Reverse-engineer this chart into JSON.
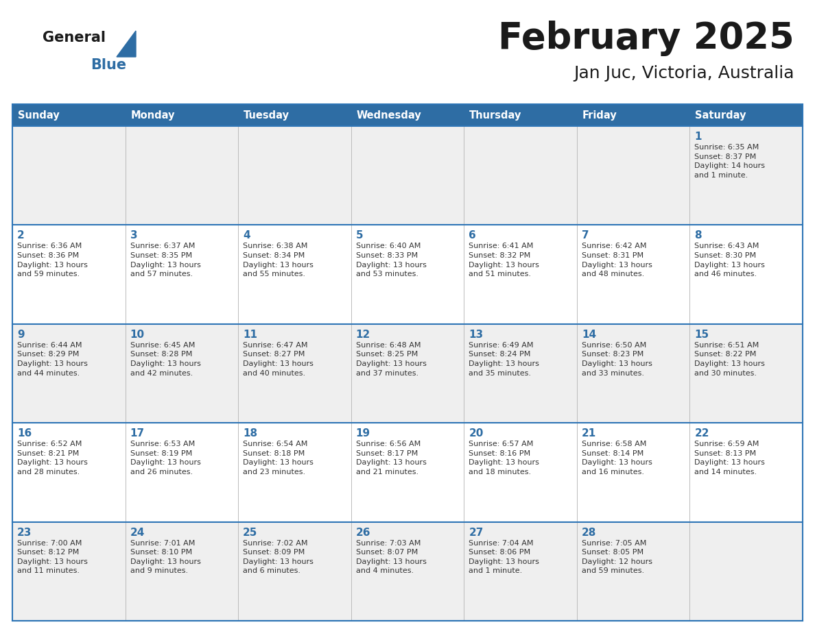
{
  "title": "February 2025",
  "subtitle": "Jan Juc, Victoria, Australia",
  "days_of_week": [
    "Sunday",
    "Monday",
    "Tuesday",
    "Wednesday",
    "Thursday",
    "Friday",
    "Saturday"
  ],
  "header_bg": "#2E6DA4",
  "header_text": "#FFFFFF",
  "cell_bg_even": "#EFEFEF",
  "cell_bg_odd": "#FFFFFF",
  "border_color": "#2E75B6",
  "cell_border_color": "#AAAAAA",
  "text_color": "#333333",
  "day_number_color": "#2E6DA4",
  "logo_general_color": "#1a1a1a",
  "logo_blue_color": "#2E6DA4",
  "weeks": [
    [
      {
        "day": null,
        "info": null
      },
      {
        "day": null,
        "info": null
      },
      {
        "day": null,
        "info": null
      },
      {
        "day": null,
        "info": null
      },
      {
        "day": null,
        "info": null
      },
      {
        "day": null,
        "info": null
      },
      {
        "day": 1,
        "info": "Sunrise: 6:35 AM\nSunset: 8:37 PM\nDaylight: 14 hours\nand 1 minute."
      }
    ],
    [
      {
        "day": 2,
        "info": "Sunrise: 6:36 AM\nSunset: 8:36 PM\nDaylight: 13 hours\nand 59 minutes."
      },
      {
        "day": 3,
        "info": "Sunrise: 6:37 AM\nSunset: 8:35 PM\nDaylight: 13 hours\nand 57 minutes."
      },
      {
        "day": 4,
        "info": "Sunrise: 6:38 AM\nSunset: 8:34 PM\nDaylight: 13 hours\nand 55 minutes."
      },
      {
        "day": 5,
        "info": "Sunrise: 6:40 AM\nSunset: 8:33 PM\nDaylight: 13 hours\nand 53 minutes."
      },
      {
        "day": 6,
        "info": "Sunrise: 6:41 AM\nSunset: 8:32 PM\nDaylight: 13 hours\nand 51 minutes."
      },
      {
        "day": 7,
        "info": "Sunrise: 6:42 AM\nSunset: 8:31 PM\nDaylight: 13 hours\nand 48 minutes."
      },
      {
        "day": 8,
        "info": "Sunrise: 6:43 AM\nSunset: 8:30 PM\nDaylight: 13 hours\nand 46 minutes."
      }
    ],
    [
      {
        "day": 9,
        "info": "Sunrise: 6:44 AM\nSunset: 8:29 PM\nDaylight: 13 hours\nand 44 minutes."
      },
      {
        "day": 10,
        "info": "Sunrise: 6:45 AM\nSunset: 8:28 PM\nDaylight: 13 hours\nand 42 minutes."
      },
      {
        "day": 11,
        "info": "Sunrise: 6:47 AM\nSunset: 8:27 PM\nDaylight: 13 hours\nand 40 minutes."
      },
      {
        "day": 12,
        "info": "Sunrise: 6:48 AM\nSunset: 8:25 PM\nDaylight: 13 hours\nand 37 minutes."
      },
      {
        "day": 13,
        "info": "Sunrise: 6:49 AM\nSunset: 8:24 PM\nDaylight: 13 hours\nand 35 minutes."
      },
      {
        "day": 14,
        "info": "Sunrise: 6:50 AM\nSunset: 8:23 PM\nDaylight: 13 hours\nand 33 minutes."
      },
      {
        "day": 15,
        "info": "Sunrise: 6:51 AM\nSunset: 8:22 PM\nDaylight: 13 hours\nand 30 minutes."
      }
    ],
    [
      {
        "day": 16,
        "info": "Sunrise: 6:52 AM\nSunset: 8:21 PM\nDaylight: 13 hours\nand 28 minutes."
      },
      {
        "day": 17,
        "info": "Sunrise: 6:53 AM\nSunset: 8:19 PM\nDaylight: 13 hours\nand 26 minutes."
      },
      {
        "day": 18,
        "info": "Sunrise: 6:54 AM\nSunset: 8:18 PM\nDaylight: 13 hours\nand 23 minutes."
      },
      {
        "day": 19,
        "info": "Sunrise: 6:56 AM\nSunset: 8:17 PM\nDaylight: 13 hours\nand 21 minutes."
      },
      {
        "day": 20,
        "info": "Sunrise: 6:57 AM\nSunset: 8:16 PM\nDaylight: 13 hours\nand 18 minutes."
      },
      {
        "day": 21,
        "info": "Sunrise: 6:58 AM\nSunset: 8:14 PM\nDaylight: 13 hours\nand 16 minutes."
      },
      {
        "day": 22,
        "info": "Sunrise: 6:59 AM\nSunset: 8:13 PM\nDaylight: 13 hours\nand 14 minutes."
      }
    ],
    [
      {
        "day": 23,
        "info": "Sunrise: 7:00 AM\nSunset: 8:12 PM\nDaylight: 13 hours\nand 11 minutes."
      },
      {
        "day": 24,
        "info": "Sunrise: 7:01 AM\nSunset: 8:10 PM\nDaylight: 13 hours\nand 9 minutes."
      },
      {
        "day": 25,
        "info": "Sunrise: 7:02 AM\nSunset: 8:09 PM\nDaylight: 13 hours\nand 6 minutes."
      },
      {
        "day": 26,
        "info": "Sunrise: 7:03 AM\nSunset: 8:07 PM\nDaylight: 13 hours\nand 4 minutes."
      },
      {
        "day": 27,
        "info": "Sunrise: 7:04 AM\nSunset: 8:06 PM\nDaylight: 13 hours\nand 1 minute."
      },
      {
        "day": 28,
        "info": "Sunrise: 7:05 AM\nSunset: 8:05 PM\nDaylight: 12 hours\nand 59 minutes."
      },
      {
        "day": null,
        "info": null
      }
    ]
  ]
}
